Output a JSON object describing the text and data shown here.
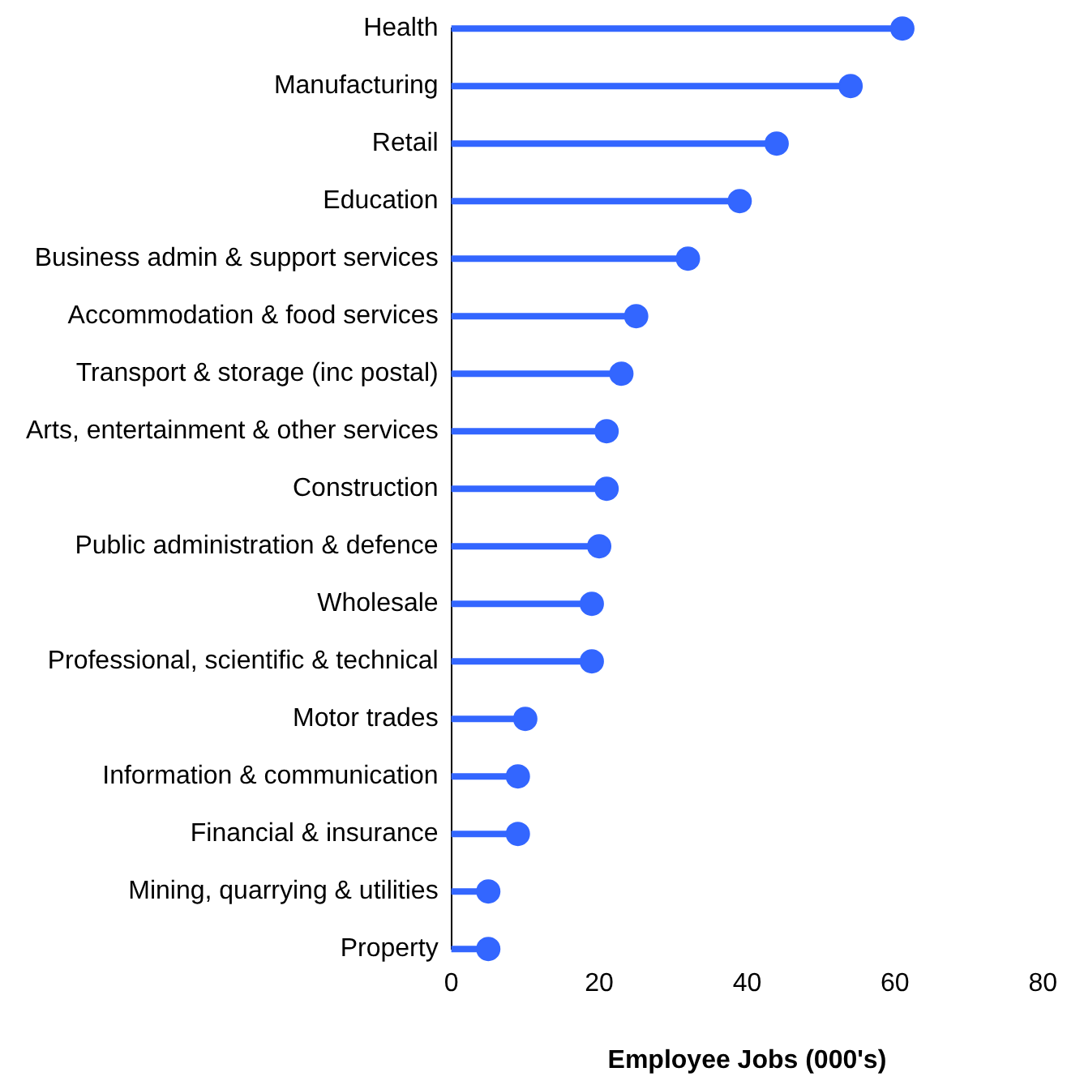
{
  "chart_data": {
    "type": "lollipop",
    "orientation": "horizontal",
    "xlabel": "Employee Jobs (000's)",
    "categories": [
      "Health",
      "Manufacturing",
      "Retail",
      "Education",
      "Business admin & support services",
      "Accommodation & food services",
      "Transport & storage (inc postal)",
      "Arts, entertainment & other services",
      "Construction",
      "Public administration & defence",
      "Wholesale",
      "Professional, scientific & technical",
      "Motor trades",
      "Information & communication",
      "Financial & insurance",
      "Mining, quarrying & utilities",
      "Property"
    ],
    "values": [
      61,
      54,
      44,
      39,
      32,
      25,
      23,
      21,
      21,
      20,
      19,
      19,
      10,
      9,
      9,
      5,
      5
    ],
    "color": "#3366ff",
    "xlim": [
      0,
      80
    ],
    "xticks": [
      0,
      20,
      40,
      60,
      80
    ],
    "grid": false,
    "marker": "circle"
  }
}
